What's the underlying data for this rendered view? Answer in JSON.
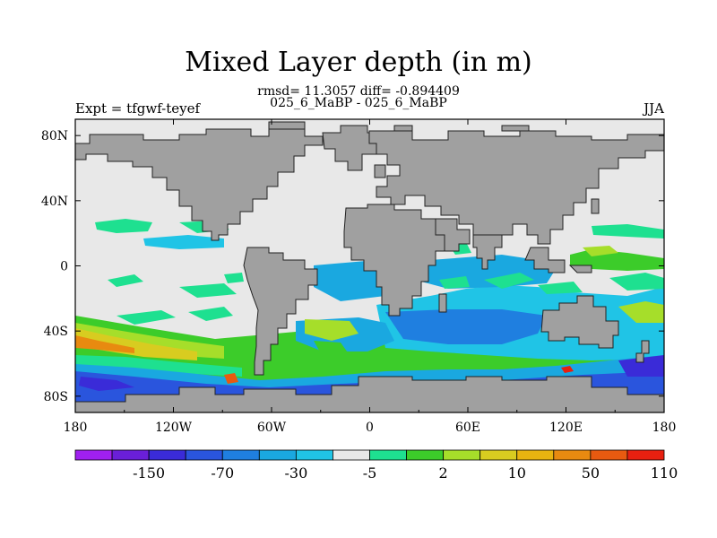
{
  "title": "Mixed Layer depth (in m)",
  "stats": "rmsd= 11.3057 diff= -0.894409",
  "subtitle": "025_6_MaBP - 025_6_MaBP",
  "left_label": "Expt = tfgwf-teyef",
  "right_label": "JJA",
  "axes": {
    "lon_ticks": [
      {
        "value": -180,
        "label": "180"
      },
      {
        "value": -120,
        "label": "120W"
      },
      {
        "value": -60,
        "label": "60W"
      },
      {
        "value": 0,
        "label": "0"
      },
      {
        "value": 60,
        "label": "60E"
      },
      {
        "value": 120,
        "label": "120E"
      },
      {
        "value": 180,
        "label": "180"
      }
    ],
    "lat_ticks": [
      {
        "value": 80,
        "label": "80N"
      },
      {
        "value": 40,
        "label": "40N"
      },
      {
        "value": 0,
        "label": "0"
      },
      {
        "value": -40,
        "label": "40S"
      },
      {
        "value": -80,
        "label": "80S"
      }
    ],
    "lon_range": [
      -180,
      180
    ],
    "lat_range": [
      -90,
      90
    ]
  },
  "colorbar": {
    "colors": [
      "#a020f0",
      "#6a1fd8",
      "#3a2bd8",
      "#2a55dd",
      "#1f7fe0",
      "#1aa8e0",
      "#20c4e6",
      "#e8e8e8",
      "#1ee090",
      "#3ccc2a",
      "#a6de2a",
      "#d8cc20",
      "#e8b410",
      "#e88a10",
      "#e85a10",
      "#e82010"
    ],
    "labels": [
      {
        "after_index": 1,
        "text": "-150"
      },
      {
        "after_index": 3,
        "text": "-70"
      },
      {
        "after_index": 5,
        "text": "-30"
      },
      {
        "after_index": 7,
        "text": "-5"
      },
      {
        "after_index": 9,
        "text": "2"
      },
      {
        "after_index": 11,
        "text": "10"
      },
      {
        "after_index": 13,
        "text": "50"
      },
      {
        "after_index": 15,
        "text": "110"
      }
    ]
  },
  "colors": {
    "land": "#a0a0a0",
    "near_zero": "#e8e8e8"
  }
}
